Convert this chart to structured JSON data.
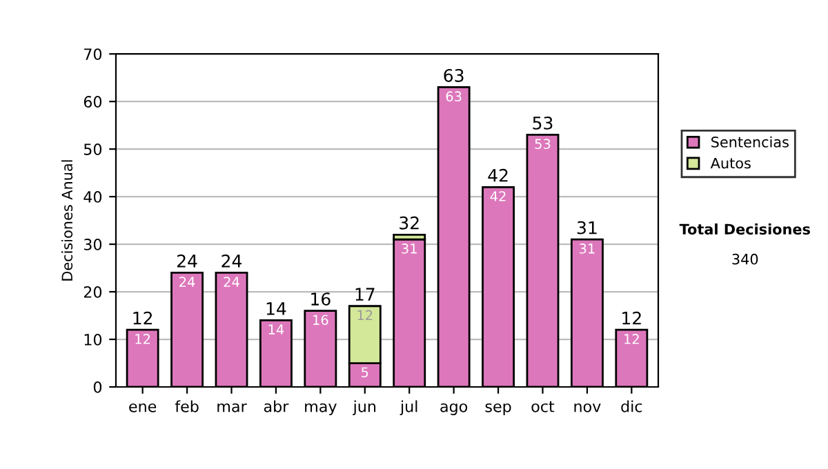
{
  "chart_data": {
    "type": "bar",
    "stacked": true,
    "ylabel": "Decisiones Anual",
    "categories": [
      "ene",
      "feb",
      "mar",
      "abr",
      "may",
      "jun",
      "jul",
      "ago",
      "sep",
      "oct",
      "nov",
      "dic"
    ],
    "series": [
      {
        "name": "Sentencias",
        "color": "#dd77bb",
        "values": [
          12,
          24,
          24,
          14,
          16,
          5,
          31,
          63,
          42,
          53,
          31,
          12
        ],
        "value_labels": [
          "12",
          "24",
          "24",
          "14",
          "16",
          "5",
          "31",
          "63",
          "42",
          "53",
          "31",
          "12"
        ]
      },
      {
        "name": "Autos",
        "color": "#d4e89a",
        "values": [
          null,
          null,
          null,
          null,
          null,
          12,
          1,
          null,
          null,
          null,
          null,
          null
        ],
        "value_labels": [
          null,
          null,
          null,
          null,
          null,
          "12",
          null,
          null,
          null,
          null,
          null,
          null
        ]
      }
    ],
    "totals": [
      "12",
      "24",
      "24",
      "14",
      "16",
      "17",
      "32",
      "63",
      "42",
      "53",
      "31",
      "12"
    ],
    "ylim": [
      0,
      70
    ],
    "yticks": [
      0,
      10,
      20,
      30,
      40,
      50,
      60,
      70
    ],
    "grid": "y",
    "legend": "right",
    "annotations": [
      "Total Decisiones",
      "340"
    ]
  }
}
